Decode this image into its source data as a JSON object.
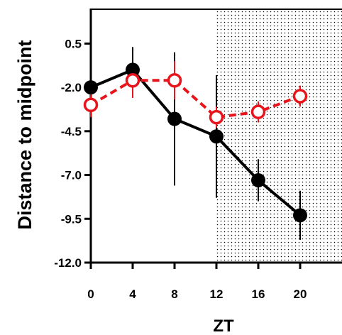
{
  "chart_data": {
    "type": "line",
    "title": "",
    "xlabel": "ZT",
    "ylabel": "Distance to midpoint",
    "x": [
      0,
      4,
      8,
      12,
      16,
      20
    ],
    "x_ticks": [
      "0",
      "4",
      "8",
      "12",
      "16",
      "20"
    ],
    "y_ticks": [
      "0.5",
      "-2.0",
      "-4.5",
      "-7.0",
      "-9.5",
      "-12.0"
    ],
    "xlim": [
      0,
      24
    ],
    "ylim": [
      -12.0,
      2.5
    ],
    "shaded_region": {
      "x_start": 12,
      "x_end": 24,
      "pattern": "dots"
    },
    "grid": false,
    "legend": "none",
    "series": [
      {
        "style": "solid",
        "marker": "filled-circle",
        "color": "#000000",
        "values": [
          -2.0,
          -1.0,
          -3.8,
          -4.8,
          -7.3,
          -9.3
        ],
        "error": [
          0.9,
          1.3,
          3.8,
          3.5,
          1.2,
          1.4
        ]
      },
      {
        "style": "dashed",
        "marker": "open-circle",
        "color": "#e8141b",
        "values": [
          -3.0,
          -1.6,
          -1.6,
          -3.7,
          -3.4,
          -2.5
        ],
        "error": [
          0.7,
          1.0,
          1.1,
          0.6,
          0.6,
          0.6
        ]
      }
    ]
  }
}
